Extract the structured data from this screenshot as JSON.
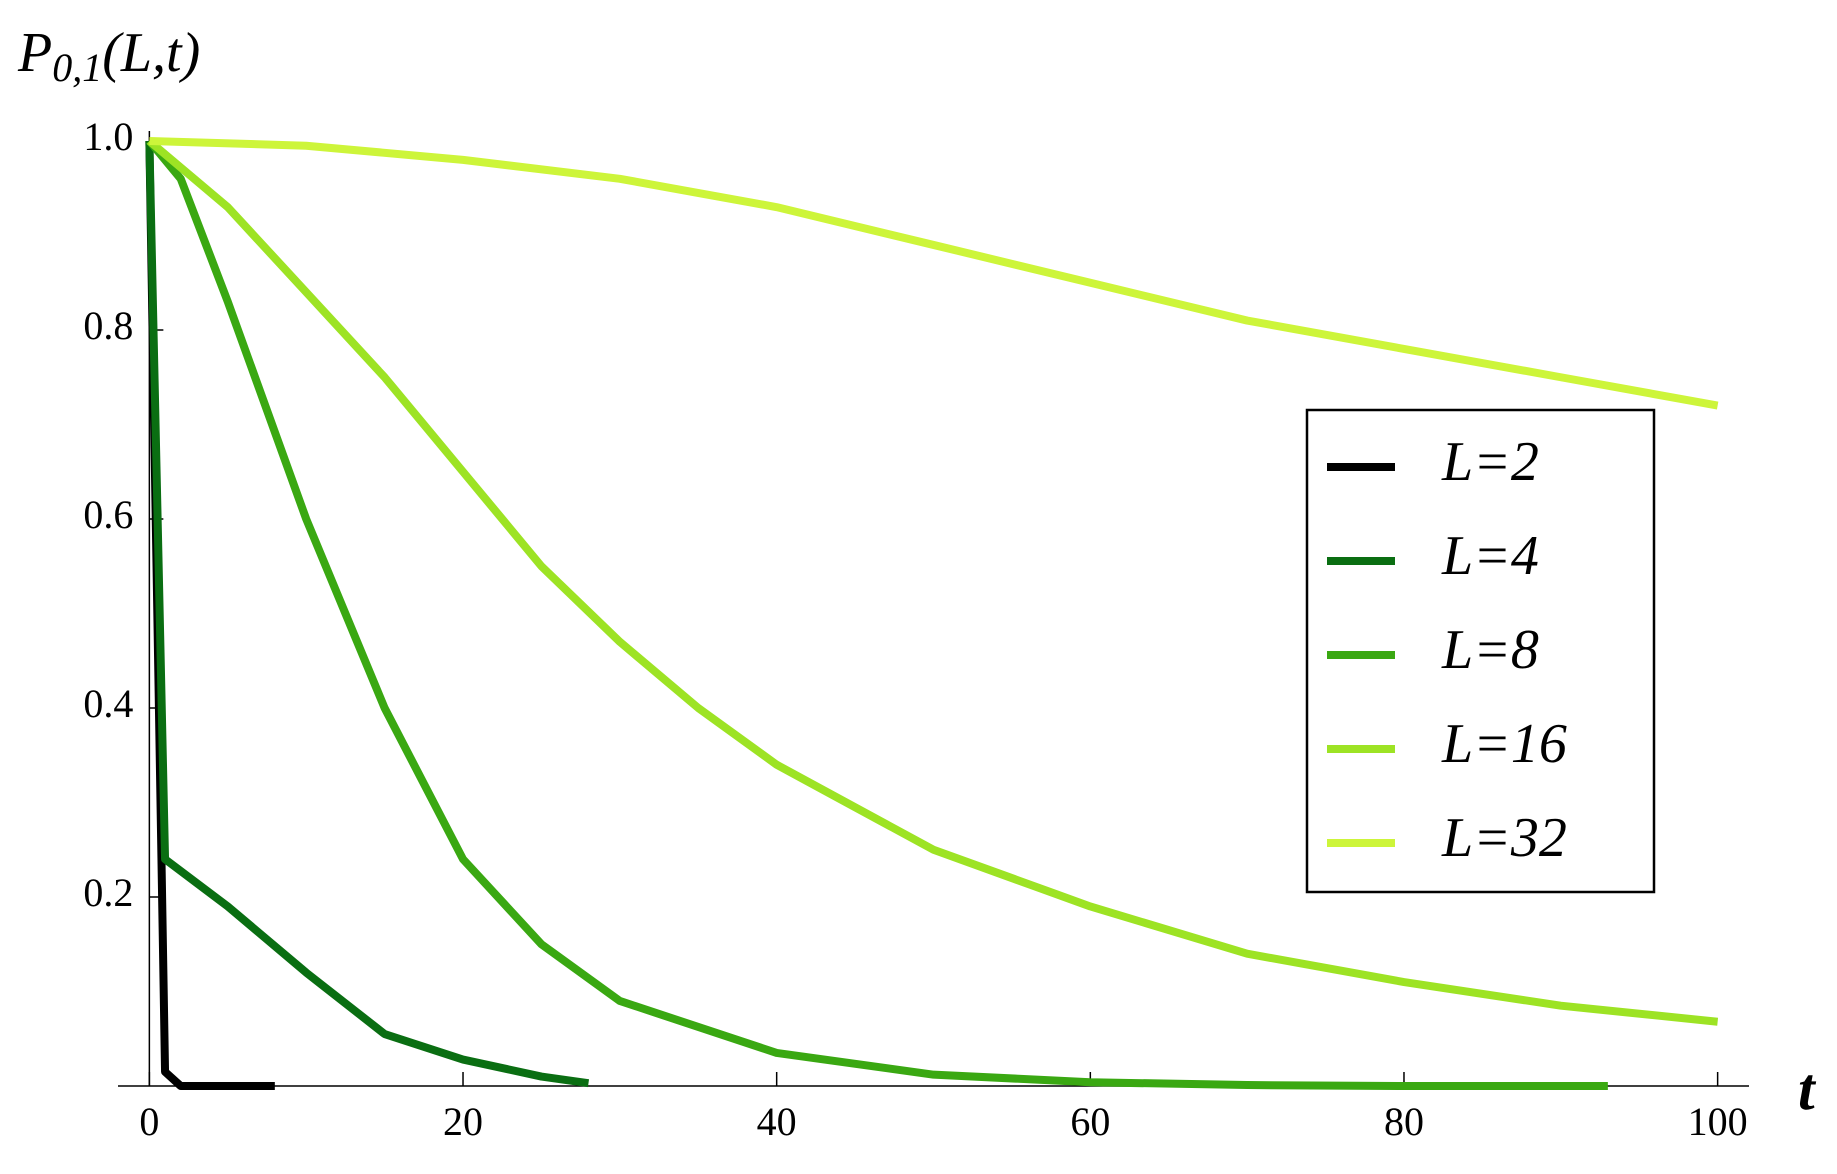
{
  "chart_data": {
    "type": "line",
    "y_label": {
      "main": "P",
      "sub": "0,1",
      "args": "(L,t)"
    },
    "x_label": "t",
    "xlim": [
      -2,
      102
    ],
    "ylim": [
      0,
      1
    ],
    "xticks": [
      0,
      20,
      40,
      60,
      80,
      100
    ],
    "yticks": [
      {
        "value": 0.2,
        "label": "0.2"
      },
      {
        "value": 0.4,
        "label": "0.4"
      },
      {
        "value": 0.6,
        "label": "0.6"
      },
      {
        "value": 0.8,
        "label": "0.8"
      },
      {
        "value": 1,
        "label": "1.0"
      }
    ],
    "legend": "right",
    "series": [
      {
        "name": "L=2",
        "color": "#000000",
        "x": [
          0,
          1,
          2,
          4,
          6,
          8
        ],
        "values": [
          1,
          0.015,
          0,
          0,
          0,
          0
        ]
      },
      {
        "name": "L=4",
        "color": "#0a6e12",
        "x": [
          0,
          1,
          5,
          10,
          15,
          20,
          25,
          28
        ],
        "values": [
          1,
          0.24,
          0.19,
          0.12,
          0.055,
          0.028,
          0.01,
          0.003
        ]
      },
      {
        "name": "L=8",
        "color": "#3aa812",
        "x": [
          0,
          2,
          5,
          10,
          15,
          20,
          25,
          30,
          40,
          50,
          60,
          70,
          80,
          93
        ],
        "values": [
          1,
          0.96,
          0.83,
          0.6,
          0.4,
          0.24,
          0.15,
          0.09,
          0.035,
          0.012,
          0.004,
          0.001,
          0,
          0
        ]
      },
      {
        "name": "L=16",
        "color": "#9de324",
        "x": [
          0,
          5,
          10,
          15,
          20,
          25,
          30,
          35,
          40,
          50,
          60,
          70,
          80,
          90,
          100
        ],
        "values": [
          1,
          0.93,
          0.84,
          0.75,
          0.65,
          0.55,
          0.47,
          0.4,
          0.34,
          0.25,
          0.19,
          0.14,
          0.11,
          0.085,
          0.068
        ]
      },
      {
        "name": "L=32",
        "color": "#cdf53a",
        "x": [
          0,
          10,
          20,
          30,
          40,
          50,
          60,
          70,
          80,
          90,
          100
        ],
        "values": [
          1,
          0.995,
          0.98,
          0.96,
          0.93,
          0.89,
          0.85,
          0.81,
          0.78,
          0.75,
          0.72
        ]
      }
    ]
  }
}
